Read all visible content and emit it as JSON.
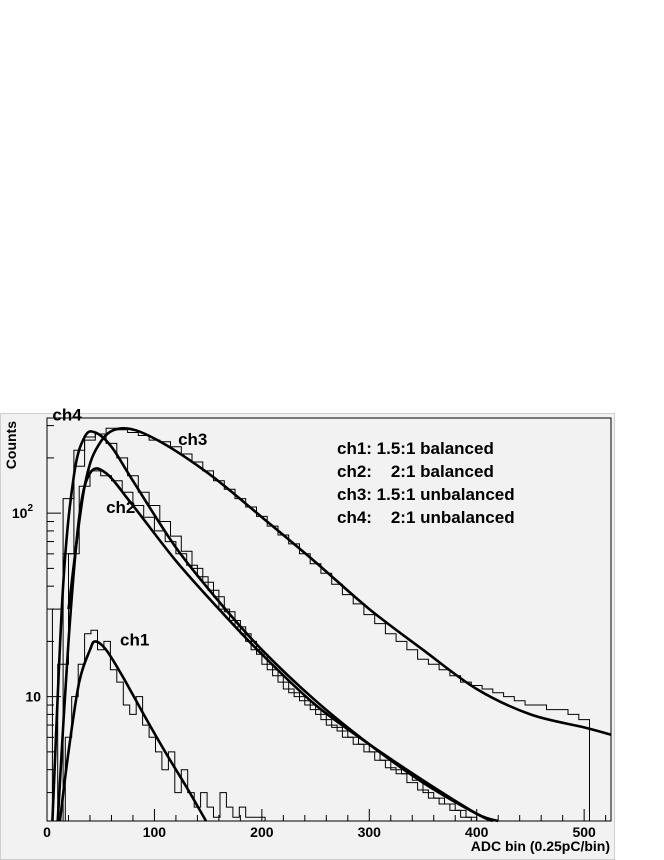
{
  "chart_data": {
    "type": "line",
    "title": "",
    "xlabel": "ADC bin (0.25pC/bin)",
    "ylabel": "Counts",
    "y_scale": "log",
    "xlim": [
      0,
      525
    ],
    "ylim": [
      2.1,
      330
    ],
    "grid": false,
    "x_ticks": [
      {
        "value": 0,
        "label": "0"
      },
      {
        "value": 100,
        "label": "100"
      },
      {
        "value": 200,
        "label": "200"
      },
      {
        "value": 300,
        "label": "300"
      },
      {
        "value": 400,
        "label": "400"
      },
      {
        "value": 500,
        "label": "500"
      }
    ],
    "y_ticks": [
      {
        "value": 10,
        "label": "10"
      },
      {
        "value": 100,
        "label": "10",
        "sup": "2"
      }
    ],
    "legend": {
      "placement": "top-right",
      "entries": [
        "ch1: 1.5:1 balanced",
        "ch2:    2:1 balanced",
        "ch3: 1.5:1 unbalanced",
        "ch4:    2:1 unbalanced"
      ]
    },
    "series": [
      {
        "name": "ch1",
        "label_at": {
          "x": 68,
          "y": 19
        },
        "fit": [
          [
            12,
            2.1
          ],
          [
            20,
            5
          ],
          [
            30,
            12
          ],
          [
            40,
            18
          ],
          [
            45,
            20
          ],
          [
            55,
            18
          ],
          [
            70,
            13
          ],
          [
            90,
            8
          ],
          [
            110,
            5
          ],
          [
            130,
            3.2
          ],
          [
            148,
            2.1
          ]
        ],
        "histogram": {
          "x": [
            20,
            26,
            32,
            38,
            44,
            50,
            56,
            62,
            68,
            74,
            80,
            86,
            92,
            98,
            104,
            110,
            116,
            122,
            128,
            134,
            140,
            146,
            152,
            158,
            164,
            170,
            176,
            182,
            188,
            194,
            200
          ],
          "y": [
            6,
            10,
            15,
            22,
            23,
            18,
            20,
            14,
            12,
            9,
            8,
            10,
            7,
            6,
            5,
            4,
            5,
            3,
            4,
            3,
            2.5,
            3,
            2.5,
            2.2,
            3,
            2.5,
            2.2,
            2.5,
            2.2,
            2.2,
            2.2
          ]
        }
      },
      {
        "name": "ch2",
        "label_at": {
          "x": 55,
          "y": 100
        },
        "fit": [
          [
            10,
            2.1
          ],
          [
            20,
            20
          ],
          [
            30,
            95
          ],
          [
            40,
            165
          ],
          [
            55,
            165
          ],
          [
            80,
            110
          ],
          [
            120,
            55
          ],
          [
            160,
            30
          ],
          [
            200,
            17
          ],
          [
            250,
            9
          ],
          [
            300,
            5.5
          ],
          [
            350,
            3.5
          ],
          [
            400,
            2.3
          ],
          [
            415,
            2.1
          ]
        ],
        "histogram": {
          "x": [
            15,
            25,
            35,
            45,
            55,
            65,
            75,
            85,
            95,
            105,
            115,
            125,
            135,
            145,
            155,
            165,
            175,
            185,
            195,
            205,
            215,
            225,
            235,
            245,
            255,
            265,
            275,
            285,
            295,
            305,
            315,
            325,
            335,
            345,
            355,
            365,
            375,
            385,
            395,
            405
          ],
          "y": [
            15,
            60,
            140,
            170,
            160,
            150,
            130,
            110,
            95,
            80,
            70,
            60,
            52,
            45,
            38,
            30,
            26,
            22,
            18,
            15,
            13,
            11,
            10,
            9,
            8,
            7,
            6.5,
            6,
            5.5,
            5,
            4.5,
            4,
            3.8,
            3.5,
            3,
            2.8,
            2.6,
            2.4,
            2.2,
            2.1
          ]
        }
      },
      {
        "name": "ch3",
        "label_at": {
          "x": 122,
          "y": 235
        },
        "fit": [
          [
            20,
            30
          ],
          [
            35,
            140
          ],
          [
            50,
            245
          ],
          [
            70,
            290
          ],
          [
            100,
            255
          ],
          [
            150,
            165
          ],
          [
            200,
            95
          ],
          [
            250,
            54
          ],
          [
            300,
            30
          ],
          [
            350,
            18
          ],
          [
            400,
            11
          ],
          [
            450,
            8
          ],
          [
            500,
            6.8
          ],
          [
            525,
            6.2
          ]
        ],
        "histogram": {
          "x": [
            20,
            30,
            40,
            50,
            60,
            70,
            80,
            90,
            100,
            110,
            120,
            130,
            140,
            150,
            160,
            170,
            180,
            190,
            200,
            210,
            220,
            230,
            240,
            250,
            260,
            270,
            280,
            290,
            300,
            310,
            320,
            330,
            340,
            350,
            360,
            370,
            380,
            390,
            400,
            410,
            420,
            430,
            440,
            450,
            460,
            470,
            480,
            490,
            500
          ],
          "y": [
            60,
            180,
            250,
            270,
            290,
            285,
            275,
            265,
            250,
            245,
            230,
            210,
            190,
            170,
            150,
            135,
            120,
            108,
            96,
            85,
            76,
            68,
            60,
            53,
            47,
            41,
            36,
            32,
            28,
            25,
            22,
            20,
            18,
            16,
            15,
            14,
            13,
            12,
            11.5,
            11,
            10.5,
            10,
            9.5,
            9,
            9,
            8.5,
            8.5,
            8,
            7.5
          ]
        }
      },
      {
        "name": "ch4",
        "label_at": {
          "x": 5,
          "y": 320
        },
        "fit": [
          [
            5,
            2.1
          ],
          [
            15,
            40
          ],
          [
            25,
            160
          ],
          [
            35,
            260
          ],
          [
            45,
            275
          ],
          [
            60,
            230
          ],
          [
            80,
            150
          ],
          [
            120,
            65
          ],
          [
            160,
            33
          ],
          [
            200,
            18
          ],
          [
            250,
            9.5
          ],
          [
            300,
            5.5
          ],
          [
            350,
            3.4
          ],
          [
            400,
            2.3
          ],
          [
            420,
            2.1
          ]
        ],
        "histogram": {
          "x": [
            10,
            20,
            30,
            40,
            50,
            60,
            70,
            80,
            90,
            100,
            110,
            120,
            130,
            140,
            150,
            160,
            170,
            180,
            190,
            200,
            210,
            220,
            230,
            240,
            250,
            260,
            270,
            280,
            290,
            300,
            310,
            320,
            330,
            340,
            350,
            360,
            370,
            380,
            390,
            400
          ],
          "y": [
            30,
            120,
            220,
            260,
            270,
            240,
            200,
            160,
            130,
            110,
            90,
            75,
            62,
            50,
            42,
            35,
            29,
            24,
            20,
            17,
            14,
            12,
            10.5,
            9.5,
            8.5,
            7.5,
            6.8,
            6,
            5.5,
            5,
            4.5,
            4.1,
            3.8,
            3.4,
            3.1,
            2.8,
            2.6,
            2.4,
            2.2,
            2.1
          ]
        }
      }
    ]
  }
}
